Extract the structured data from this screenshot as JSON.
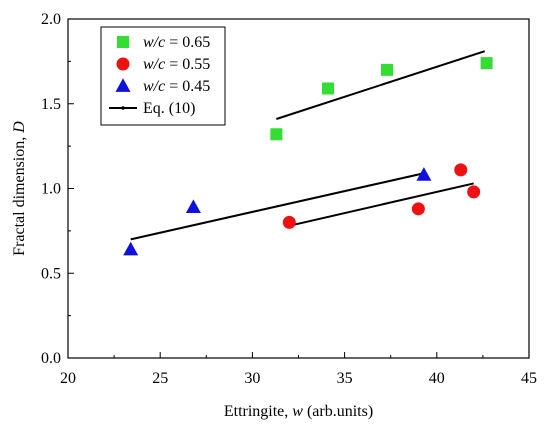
{
  "chart_data": {
    "type": "scatter",
    "xlabel_prefix": "Ettringite, ",
    "xlabel_var": "w",
    "xlabel_suffix": " (arb.units)",
    "ylabel_prefix": "Fractal dimension, ",
    "ylabel_var": "D",
    "xlim": [
      20,
      45
    ],
    "ylim": [
      0.0,
      2.0
    ],
    "x_ticks": [
      "20",
      "25",
      "30",
      "35",
      "40",
      "45"
    ],
    "y_ticks": [
      "0.0",
      "0.5",
      "1.0",
      "1.5",
      "2.0"
    ],
    "legend_position": "top-left",
    "series": [
      {
        "name_var": "w/c",
        "name_rest": " = 0.65",
        "marker": "square",
        "color": "#33dd33",
        "x": [
          31.3,
          34.1,
          37.3,
          42.7
        ],
        "y": [
          1.32,
          1.59,
          1.7,
          1.74
        ],
        "fit": {
          "x": [
            31.3,
            42.6
          ],
          "y": [
            1.41,
            1.81
          ]
        }
      },
      {
        "name_var": "w/c",
        "name_rest": " = 0.55",
        "marker": "circle",
        "color": "#ee1111",
        "x": [
          32.0,
          39.0,
          41.3,
          42.0
        ],
        "y": [
          0.8,
          0.88,
          1.11,
          0.98
        ],
        "fit": {
          "x": [
            32.0,
            42.0
          ],
          "y": [
            0.78,
            1.03
          ]
        }
      },
      {
        "name_var": "w/c",
        "name_rest": " = 0.45",
        "marker": "triangle",
        "color": "#1111dd",
        "x": [
          23.4,
          26.8,
          39.3
        ],
        "y": [
          0.64,
          0.89,
          1.08
        ],
        "fit": {
          "x": [
            23.4,
            39.3
          ],
          "y": [
            0.7,
            1.09
          ]
        }
      }
    ],
    "fit_legend_label": "Eq. (10)",
    "fit_color": "#000000"
  }
}
